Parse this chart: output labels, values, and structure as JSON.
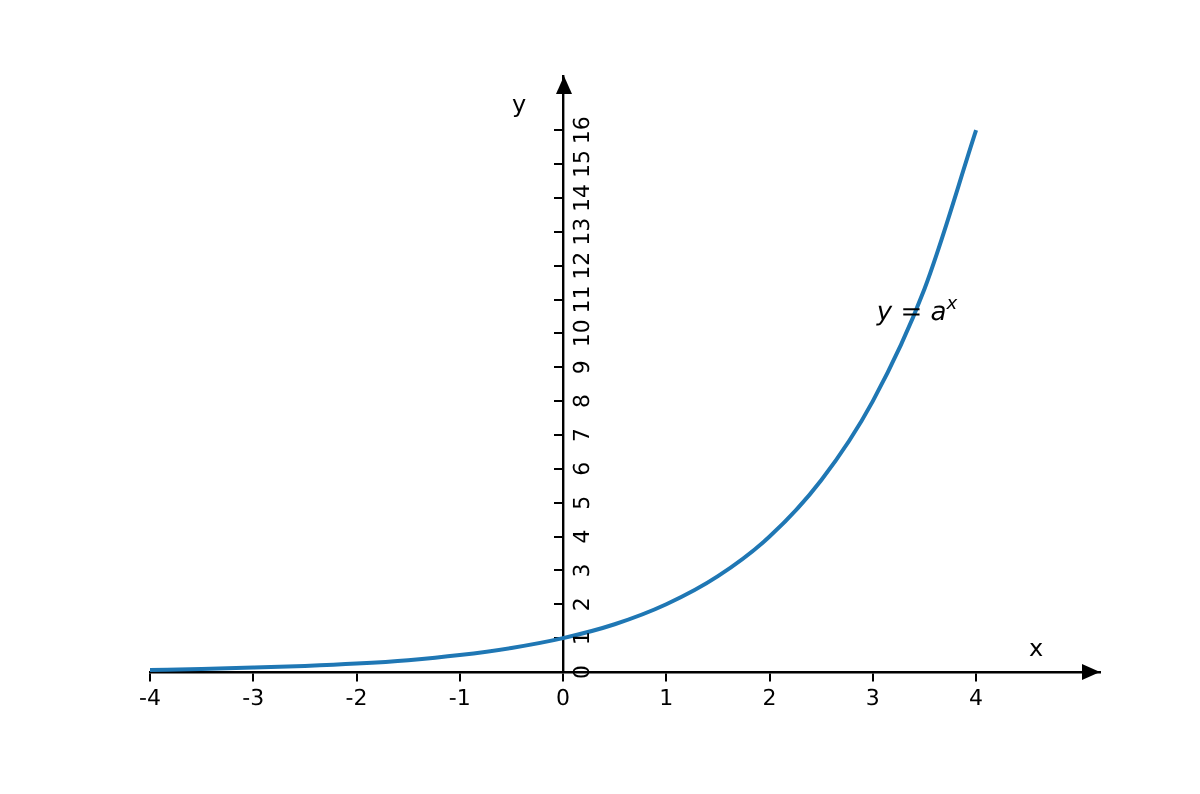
{
  "chart_data": {
    "type": "line",
    "xlabel": "x",
    "ylabel": "y",
    "series": [
      {
        "color": "#1f77b4",
        "x": [
          -4,
          -3.5,
          -3,
          -2.5,
          -2,
          -1.5,
          -1,
          -0.5,
          0,
          0.5,
          1,
          1.5,
          2,
          2.5,
          3,
          3.5,
          4
        ],
        "values": [
          0.06,
          0.09,
          0.13,
          0.18,
          0.25,
          0.35,
          0.5,
          0.71,
          1,
          1.41,
          2,
          2.83,
          4,
          5.66,
          8,
          11.31,
          16
        ]
      }
    ],
    "xlim": [
      -4,
      5.2
    ],
    "ylim": [
      0,
      17.6
    ],
    "xticks": [
      -4,
      -3,
      -2,
      -1,
      0,
      1,
      2,
      3,
      4
    ],
    "yticks": [
      0,
      1,
      2,
      3,
      4,
      5,
      6,
      7,
      8,
      9,
      10,
      11,
      12,
      13,
      14,
      15,
      16
    ],
    "annotations": [
      "y = a$^{x}$"
    ],
    "grid": false,
    "legend": false,
    "marker": "none",
    "line_style": "solid"
  }
}
